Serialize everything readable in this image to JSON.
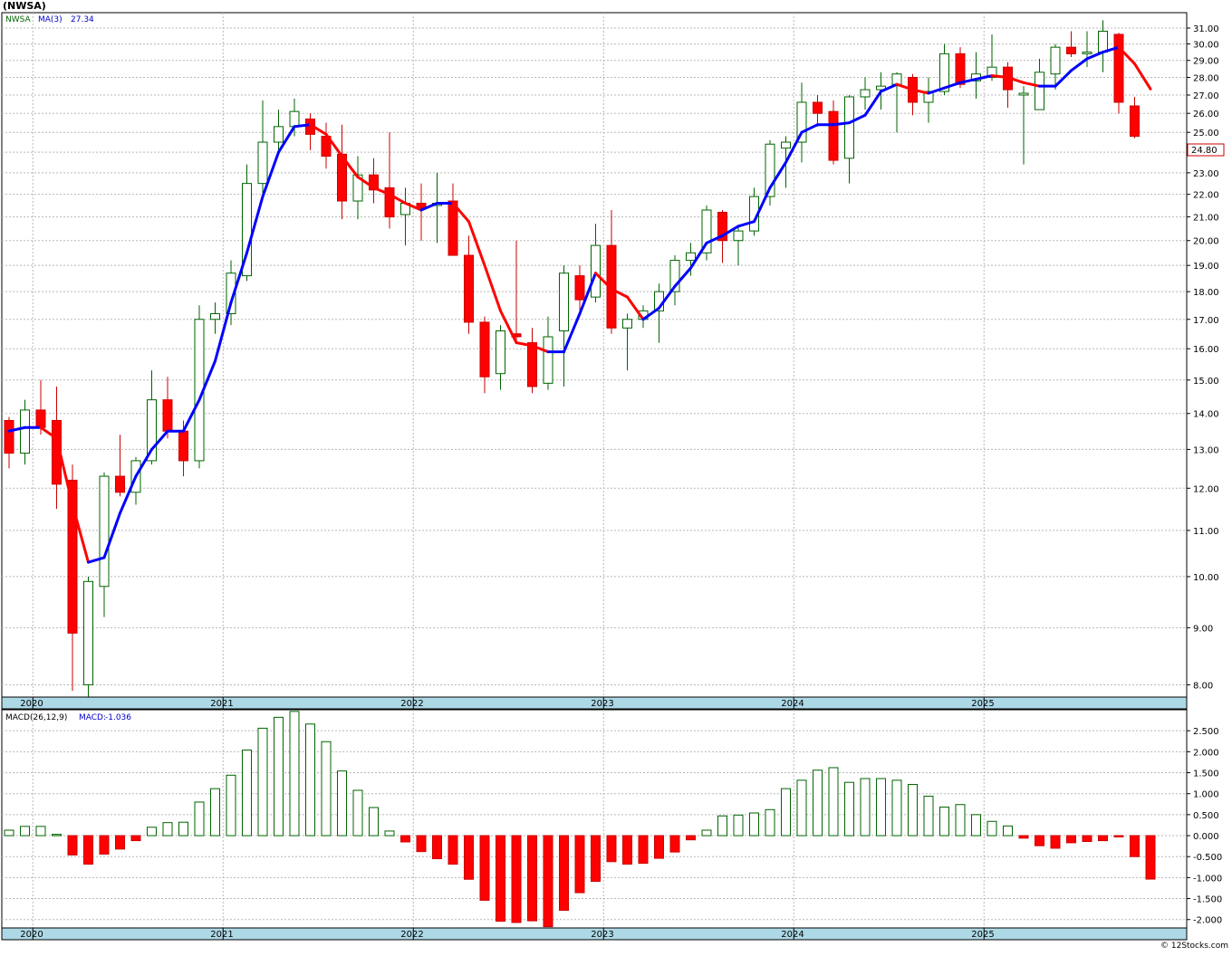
{
  "title": "(NWSA)",
  "watermark": "© 12Stocks.com",
  "chart_data": [
    {
      "type": "candlestick",
      "symbol": "NWSA",
      "legend": {
        "symbol_label": "NWSA",
        "ma_label": "MA(3)",
        "ma_value": "27.34"
      },
      "last_price_label": "24.80",
      "y_scale": "log",
      "ylim": [
        7.8,
        32.0
      ],
      "y_ticks": [
        "8.00",
        "9.00",
        "10.00",
        "11.00",
        "12.00",
        "13.00",
        "14.00",
        "15.00",
        "16.00",
        "17.00",
        "18.00",
        "19.00",
        "20.00",
        "21.00",
        "22.00",
        "23.00",
        "24.00",
        "25.00",
        "26.00",
        "27.00",
        "28.00",
        "29.00",
        "30.00",
        "31.00"
      ],
      "x_ticks": [
        {
          "label": "2020",
          "index": 2
        },
        {
          "label": "2021",
          "index": 14
        },
        {
          "label": "2022",
          "index": 26
        },
        {
          "label": "2023",
          "index": 38
        },
        {
          "label": "2024",
          "index": 50
        },
        {
          "label": "2025",
          "index": 62
        }
      ],
      "grid": true,
      "colors": {
        "up": "#006400",
        "down": "#cc0000",
        "down_fill": "#ff0000",
        "ma_rising": "#0000ff",
        "ma_falling": "#ff0000"
      },
      "candles": [
        {
          "t": "2019-12",
          "o": 13.8,
          "h": 13.9,
          "l": 12.5,
          "c": 12.9
        },
        {
          "t": "2020-01",
          "o": 12.9,
          "h": 14.4,
          "l": 12.6,
          "c": 14.1
        },
        {
          "t": "2020-02",
          "o": 14.1,
          "h": 15.0,
          "l": 13.4,
          "c": 13.6
        },
        {
          "t": "2020-03",
          "o": 13.8,
          "h": 14.8,
          "l": 11.5,
          "c": 12.1
        },
        {
          "t": "2020-04",
          "o": 12.2,
          "h": 12.6,
          "l": 7.9,
          "c": 8.9
        },
        {
          "t": "2020-05",
          "o": 8.0,
          "h": 10.0,
          "l": 7.8,
          "c": 9.9
        },
        {
          "t": "2020-06",
          "o": 9.8,
          "h": 12.4,
          "l": 9.2,
          "c": 12.3
        },
        {
          "t": "2020-07",
          "o": 12.3,
          "h": 13.4,
          "l": 11.8,
          "c": 11.9
        },
        {
          "t": "2020-08",
          "o": 11.9,
          "h": 12.8,
          "l": 11.6,
          "c": 12.7
        },
        {
          "t": "2020-09",
          "o": 12.7,
          "h": 15.3,
          "l": 12.6,
          "c": 14.4
        },
        {
          "t": "2020-10",
          "o": 14.4,
          "h": 15.1,
          "l": 13.3,
          "c": 13.5
        },
        {
          "t": "2020-11",
          "o": 13.5,
          "h": 13.8,
          "l": 12.3,
          "c": 12.7
        },
        {
          "t": "2020-12",
          "o": 12.7,
          "h": 17.5,
          "l": 12.5,
          "c": 17.0
        },
        {
          "t": "2021-01",
          "o": 17.0,
          "h": 17.6,
          "l": 16.5,
          "c": 17.2
        },
        {
          "t": "2021-02",
          "o": 17.2,
          "h": 19.2,
          "l": 16.8,
          "c": 18.7
        },
        {
          "t": "2021-03",
          "o": 18.6,
          "h": 23.4,
          "l": 18.4,
          "c": 22.5
        },
        {
          "t": "2021-04",
          "o": 22.5,
          "h": 26.7,
          "l": 21.9,
          "c": 24.5
        },
        {
          "t": "2021-05",
          "o": 24.5,
          "h": 26.2,
          "l": 24.0,
          "c": 25.3
        },
        {
          "t": "2021-06",
          "o": 25.3,
          "h": 26.8,
          "l": 24.8,
          "c": 26.1
        },
        {
          "t": "2021-07",
          "o": 25.7,
          "h": 26.0,
          "l": 24.1,
          "c": 24.9
        },
        {
          "t": "2021-08",
          "o": 24.8,
          "h": 25.5,
          "l": 23.2,
          "c": 23.8
        },
        {
          "t": "2021-09",
          "o": 23.9,
          "h": 25.4,
          "l": 20.9,
          "c": 21.7
        },
        {
          "t": "2021-10",
          "o": 21.7,
          "h": 23.8,
          "l": 20.9,
          "c": 22.9
        },
        {
          "t": "2021-11",
          "o": 22.9,
          "h": 23.7,
          "l": 21.6,
          "c": 22.2
        },
        {
          "t": "2021-12",
          "o": 22.3,
          "h": 25.0,
          "l": 20.5,
          "c": 21.0
        },
        {
          "t": "2022-01",
          "o": 21.1,
          "h": 22.3,
          "l": 19.8,
          "c": 21.6
        },
        {
          "t": "2022-02",
          "o": 21.6,
          "h": 22.5,
          "l": 20.0,
          "c": 21.4
        },
        {
          "t": "2022-03",
          "o": 21.5,
          "h": 23.0,
          "l": 19.9,
          "c": 21.6
        },
        {
          "t": "2022-04",
          "o": 21.7,
          "h": 22.5,
          "l": 19.5,
          "c": 19.4
        },
        {
          "t": "2022-05",
          "o": 19.4,
          "h": 20.2,
          "l": 16.5,
          "c": 16.9
        },
        {
          "t": "2022-06",
          "o": 16.9,
          "h": 17.1,
          "l": 14.6,
          "c": 15.1
        },
        {
          "t": "2022-07",
          "o": 15.2,
          "h": 16.8,
          "l": 14.7,
          "c": 16.6
        },
        {
          "t": "2022-08",
          "o": 16.5,
          "h": 20.0,
          "l": 16.2,
          "c": 16.4
        },
        {
          "t": "2022-09",
          "o": 16.2,
          "h": 16.7,
          "l": 14.6,
          "c": 14.8
        },
        {
          "t": "2022-10",
          "o": 14.9,
          "h": 17.1,
          "l": 14.7,
          "c": 16.4
        },
        {
          "t": "2022-11",
          "o": 16.6,
          "h": 19.0,
          "l": 14.8,
          "c": 18.7
        },
        {
          "t": "2022-12",
          "o": 18.6,
          "h": 19.0,
          "l": 17.2,
          "c": 17.7
        },
        {
          "t": "2023-01",
          "o": 17.8,
          "h": 20.7,
          "l": 17.6,
          "c": 19.8
        },
        {
          "t": "2023-02",
          "o": 19.8,
          "h": 21.3,
          "l": 16.5,
          "c": 16.7
        },
        {
          "t": "2023-03",
          "o": 16.7,
          "h": 17.2,
          "l": 15.3,
          "c": 17.0
        },
        {
          "t": "2023-04",
          "o": 17.0,
          "h": 17.5,
          "l": 16.7,
          "c": 17.3
        },
        {
          "t": "2023-05",
          "o": 17.3,
          "h": 18.3,
          "l": 16.2,
          "c": 18.0
        },
        {
          "t": "2023-06",
          "o": 18.0,
          "h": 19.4,
          "l": 17.5,
          "c": 19.2
        },
        {
          "t": "2023-07",
          "o": 19.2,
          "h": 19.9,
          "l": 18.6,
          "c": 19.5
        },
        {
          "t": "2023-08",
          "o": 19.5,
          "h": 21.5,
          "l": 19.2,
          "c": 21.3
        },
        {
          "t": "2023-09",
          "o": 21.2,
          "h": 21.3,
          "l": 19.1,
          "c": 20.0
        },
        {
          "t": "2023-10",
          "o": 20.0,
          "h": 20.6,
          "l": 19.0,
          "c": 20.4
        },
        {
          "t": "2023-11",
          "o": 20.4,
          "h": 22.3,
          "l": 20.2,
          "c": 21.9
        },
        {
          "t": "2023-12",
          "o": 21.9,
          "h": 24.6,
          "l": 21.5,
          "c": 24.4
        },
        {
          "t": "2024-01",
          "o": 24.2,
          "h": 24.8,
          "l": 22.3,
          "c": 24.5
        },
        {
          "t": "2024-02",
          "o": 24.5,
          "h": 27.7,
          "l": 23.5,
          "c": 26.6
        },
        {
          "t": "2024-03",
          "o": 26.6,
          "h": 27.0,
          "l": 25.3,
          "c": 26.0
        },
        {
          "t": "2024-04",
          "o": 26.1,
          "h": 26.7,
          "l": 23.4,
          "c": 23.6
        },
        {
          "t": "2024-05",
          "o": 23.7,
          "h": 27.0,
          "l": 22.5,
          "c": 26.9
        },
        {
          "t": "2024-06",
          "o": 26.9,
          "h": 28.0,
          "l": 26.2,
          "c": 27.3
        },
        {
          "t": "2024-07",
          "o": 27.3,
          "h": 28.3,
          "l": 26.2,
          "c": 27.5
        },
        {
          "t": "2024-08",
          "o": 27.6,
          "h": 28.3,
          "l": 25.0,
          "c": 28.2
        },
        {
          "t": "2024-09",
          "o": 28.0,
          "h": 28.2,
          "l": 25.9,
          "c": 26.6
        },
        {
          "t": "2024-10",
          "o": 26.6,
          "h": 28.0,
          "l": 25.5,
          "c": 27.2
        },
        {
          "t": "2024-11",
          "o": 27.2,
          "h": 30.0,
          "l": 27.0,
          "c": 29.4
        },
        {
          "t": "2024-12",
          "o": 29.4,
          "h": 29.8,
          "l": 27.4,
          "c": 27.6
        },
        {
          "t": "2025-01",
          "o": 27.8,
          "h": 29.5,
          "l": 26.8,
          "c": 28.2
        },
        {
          "t": "2025-02",
          "o": 28.0,
          "h": 30.6,
          "l": 27.8,
          "c": 28.6
        },
        {
          "t": "2025-03",
          "o": 28.6,
          "h": 28.9,
          "l": 26.3,
          "c": 27.3
        },
        {
          "t": "2025-04",
          "o": 27.0,
          "h": 27.5,
          "l": 23.4,
          "c": 27.1
        },
        {
          "t": "2025-05",
          "o": 26.2,
          "h": 29.1,
          "l": 26.2,
          "c": 28.3
        },
        {
          "t": "2025-06",
          "o": 28.2,
          "h": 30.0,
          "l": 27.3,
          "c": 29.8
        },
        {
          "t": "2025-07",
          "o": 29.8,
          "h": 30.8,
          "l": 29.2,
          "c": 29.4
        },
        {
          "t": "2025-08",
          "o": 29.4,
          "h": 30.8,
          "l": 28.6,
          "c": 29.5
        },
        {
          "t": "2025-09",
          "o": 29.5,
          "h": 31.5,
          "l": 28.3,
          "c": 30.8
        },
        {
          "t": "2025-10",
          "o": 30.6,
          "h": 30.7,
          "l": 26.0,
          "c": 26.6
        },
        {
          "t": "2025-11",
          "o": 26.4,
          "h": 26.9,
          "l": 24.7,
          "c": 24.8
        }
      ],
      "ma": [
        13.5,
        13.6,
        13.6,
        13.3,
        11.6,
        10.3,
        10.4,
        11.4,
        12.3,
        13.0,
        13.5,
        13.5,
        14.4,
        15.6,
        17.6,
        19.5,
        21.9,
        24.0,
        25.3,
        25.4,
        24.9,
        23.8,
        22.8,
        22.3,
        22.0,
        21.6,
        21.3,
        21.6,
        21.6,
        20.8,
        19.0,
        17.3,
        16.2,
        16.1,
        15.9,
        15.9,
        17.2,
        18.7,
        18.1,
        17.8,
        17.0,
        17.4,
        18.2,
        18.9,
        19.9,
        20.2,
        20.6,
        20.8,
        22.3,
        23.5,
        25.0,
        25.4,
        25.4,
        25.5,
        25.9,
        27.2,
        27.6,
        27.3,
        27.1,
        27.4,
        27.7,
        27.9,
        28.1,
        28.0,
        27.7,
        27.5,
        27.5,
        28.4,
        29.1,
        29.5,
        29.8,
        28.8,
        27.34
      ]
    },
    {
      "type": "histogram",
      "legend": {
        "label": "MACD(26,12,9)",
        "value_label": "MACD:",
        "value": "-1.036"
      },
      "ylim": [
        -2.2,
        3.0
      ],
      "y_ticks": [
        "2.500",
        "2.000",
        "1.500",
        "1.000",
        "0.500",
        "0.000",
        "-0.500",
        "-1.000",
        "-1.500",
        "-2.000"
      ],
      "y_tick_values": [
        2.5,
        2.0,
        1.5,
        1.0,
        0.5,
        0.0,
        -0.5,
        -1.0,
        -1.5,
        -2.0
      ],
      "x_ticks": [
        {
          "label": "2020",
          "index": 2
        },
        {
          "label": "2021",
          "index": 14
        },
        {
          "label": "2022",
          "index": 26
        },
        {
          "label": "2023",
          "index": 38
        },
        {
          "label": "2024",
          "index": 50
        },
        {
          "label": "2025",
          "index": 62
        }
      ],
      "colors": {
        "positive": "#006400",
        "negative": "#ff0000"
      },
      "values": [
        0.13,
        0.22,
        0.22,
        0.03,
        -0.46,
        -0.68,
        -0.44,
        -0.32,
        -0.12,
        0.2,
        0.31,
        0.32,
        0.8,
        1.12,
        1.44,
        2.04,
        2.56,
        2.82,
        2.96,
        2.66,
        2.24,
        1.54,
        1.08,
        0.67,
        0.11,
        -0.15,
        -0.38,
        -0.55,
        -0.68,
        -1.04,
        -1.54,
        -2.04,
        -2.07,
        -2.03,
        -2.17,
        -1.78,
        -1.36,
        -1.09,
        -0.62,
        -0.68,
        -0.66,
        -0.54,
        -0.39,
        -0.1,
        0.13,
        0.47,
        0.49,
        0.54,
        0.62,
        1.12,
        1.32,
        1.56,
        1.62,
        1.27,
        1.36,
        1.36,
        1.32,
        1.22,
        0.94,
        0.68,
        0.74,
        0.5,
        0.34,
        0.23,
        -0.06,
        -0.24,
        -0.3,
        -0.17,
        -0.14,
        -0.12,
        -0.03,
        -0.5,
        -1.036
      ]
    }
  ]
}
